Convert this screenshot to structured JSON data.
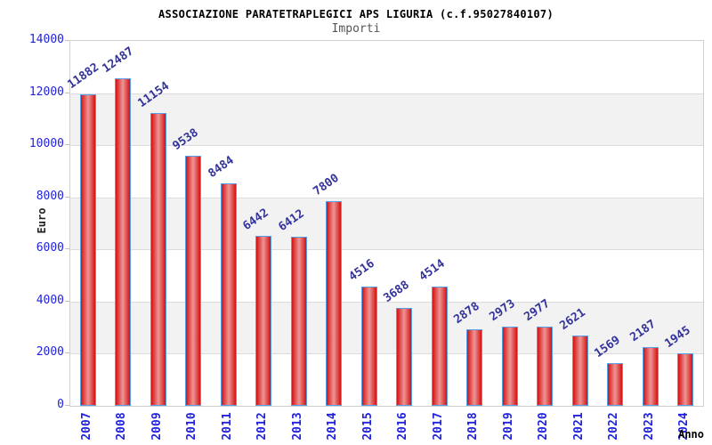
{
  "header": {
    "title": "ASSOCIAZIONE PARATETRAPLEGICI APS LIGURIA (c.f.95027840107)",
    "subtitle": "Importi"
  },
  "chart_data": {
    "type": "bar",
    "title": "ASSOCIAZIONE PARATETRAPLEGICI APS LIGURIA (c.f.95027840107)",
    "subtitle": "Importi",
    "xlabel": "Anno",
    "ylabel": "Euro",
    "categories": [
      "2007",
      "2008",
      "2009",
      "2010",
      "2011",
      "2012",
      "2013",
      "2014",
      "2015",
      "2016",
      "2017",
      "2018",
      "2019",
      "2020",
      "2021",
      "2022",
      "2023",
      "2024"
    ],
    "values": [
      11882,
      12487,
      11154,
      9538,
      8484,
      6442,
      6412,
      7800,
      4516,
      3688,
      4514,
      2878,
      2973,
      2977,
      2621,
      1569,
      2187,
      1945
    ],
    "ylim": [
      0,
      14000
    ],
    "ytick_step": 2000,
    "yticks": [
      0,
      2000,
      4000,
      6000,
      8000,
      10000,
      12000,
      14000
    ],
    "grid": "horizontal",
    "legend_position": "none",
    "bands_alternating": true
  },
  "colors": {
    "bar_fill_edge": "#d31212",
    "bar_fill_center": "#ee9595",
    "bar_border": "#55a0e8",
    "y_tick_text": "#2222dd",
    "x_tick_text": "#2222dd",
    "value_label_text": "#333399",
    "band_gray": "#f2f2f2",
    "gridline": "#dcdcdc",
    "plot_border": "#cfcfcf",
    "title_text": "#000000",
    "subtitle_text": "#555555"
  }
}
